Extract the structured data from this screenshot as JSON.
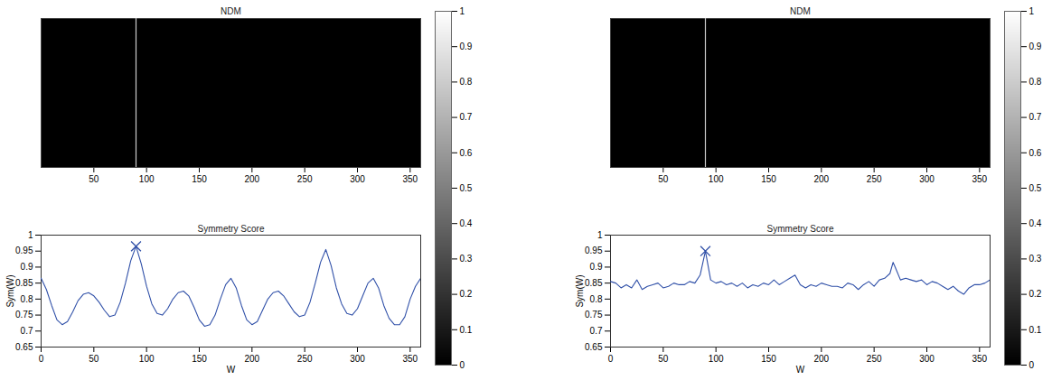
{
  "chart_data": [
    {
      "type": "image",
      "title": "NDM",
      "xlim": [
        0,
        360
      ],
      "xticks": [
        50,
        100,
        150,
        200,
        250,
        300,
        350
      ],
      "tick_labels": "x",
      "cursor_x": 90,
      "colorbar_range": [
        0,
        1
      ],
      "colorbar_ticks": [
        0,
        0.1,
        0.2,
        0.3,
        0.4,
        0.5,
        0.6,
        0.7,
        0.8,
        0.9,
        1
      ]
    },
    {
      "type": "line",
      "title": "Symmetry Score",
      "xlabel": "W",
      "ylabel": "Sym(W)",
      "color": "#3050a8",
      "marker": "x",
      "xlim": [
        0,
        360
      ],
      "ylim": [
        0.65,
        1
      ],
      "xticks": [
        0,
        50,
        100,
        150,
        200,
        250,
        300,
        350
      ],
      "yticks": [
        0.65,
        0.7,
        0.75,
        0.8,
        0.85,
        0.9,
        0.95,
        1
      ],
      "x": [
        0,
        5,
        10,
        15,
        20,
        25,
        30,
        35,
        40,
        45,
        50,
        55,
        60,
        65,
        70,
        75,
        80,
        85,
        90,
        95,
        100,
        105,
        110,
        115,
        120,
        125,
        130,
        135,
        140,
        145,
        150,
        155,
        160,
        165,
        170,
        175,
        180,
        185,
        190,
        195,
        200,
        205,
        210,
        215,
        220,
        225,
        230,
        235,
        240,
        245,
        250,
        255,
        260,
        265,
        270,
        275,
        280,
        285,
        290,
        295,
        300,
        305,
        310,
        315,
        320,
        325,
        330,
        335,
        340,
        345,
        350,
        355,
        360
      ],
      "values": [
        0.865,
        0.83,
        0.78,
        0.735,
        0.72,
        0.73,
        0.76,
        0.795,
        0.815,
        0.82,
        0.81,
        0.79,
        0.765,
        0.745,
        0.75,
        0.79,
        0.85,
        0.92,
        0.965,
        0.91,
        0.84,
        0.785,
        0.755,
        0.75,
        0.77,
        0.8,
        0.82,
        0.825,
        0.81,
        0.775,
        0.735,
        0.715,
        0.72,
        0.75,
        0.8,
        0.845,
        0.865,
        0.835,
        0.78,
        0.735,
        0.72,
        0.73,
        0.765,
        0.8,
        0.82,
        0.825,
        0.81,
        0.785,
        0.76,
        0.745,
        0.75,
        0.79,
        0.85,
        0.915,
        0.955,
        0.905,
        0.835,
        0.785,
        0.755,
        0.75,
        0.77,
        0.81,
        0.85,
        0.865,
        0.835,
        0.78,
        0.74,
        0.72,
        0.72,
        0.745,
        0.8,
        0.84,
        0.865
      ],
      "peak": {
        "x": 90,
        "y": 0.965
      }
    },
    {
      "type": "image",
      "title": "NDM",
      "xlim": [
        0,
        360
      ],
      "xticks": [
        50,
        100,
        150,
        200,
        250,
        300,
        350
      ],
      "tick_labels": "x",
      "cursor_x": 90,
      "colorbar_range": [
        0,
        1
      ],
      "colorbar_ticks": [
        0,
        0.1,
        0.2,
        0.3,
        0.4,
        0.5,
        0.6,
        0.7,
        0.8,
        0.9,
        1
      ]
    },
    {
      "type": "line",
      "title": "Symmetry Score",
      "xlabel": "W",
      "ylabel": "Sym(W)",
      "color": "#3050a8",
      "marker": "x",
      "xlim": [
        0,
        360
      ],
      "ylim": [
        0.65,
        1
      ],
      "xticks": [
        0,
        50,
        100,
        150,
        200,
        250,
        300,
        350
      ],
      "yticks": [
        0.65,
        0.7,
        0.75,
        0.8,
        0.85,
        0.9,
        0.95,
        1
      ],
      "x": [
        0,
        5,
        10,
        15,
        20,
        25,
        30,
        35,
        40,
        45,
        50,
        55,
        60,
        65,
        70,
        75,
        80,
        85,
        90,
        95,
        100,
        105,
        110,
        115,
        120,
        125,
        130,
        135,
        140,
        145,
        150,
        155,
        160,
        165,
        170,
        175,
        180,
        185,
        190,
        195,
        200,
        205,
        210,
        215,
        220,
        225,
        230,
        235,
        240,
        245,
        250,
        255,
        260,
        265,
        268,
        270,
        275,
        280,
        285,
        290,
        295,
        300,
        305,
        310,
        315,
        320,
        325,
        330,
        335,
        340,
        345,
        350,
        355,
        360
      ],
      "values": [
        0.855,
        0.85,
        0.835,
        0.845,
        0.835,
        0.86,
        0.83,
        0.84,
        0.845,
        0.85,
        0.835,
        0.84,
        0.85,
        0.845,
        0.845,
        0.855,
        0.85,
        0.875,
        0.95,
        0.86,
        0.85,
        0.855,
        0.845,
        0.85,
        0.84,
        0.85,
        0.835,
        0.845,
        0.84,
        0.85,
        0.845,
        0.86,
        0.845,
        0.855,
        0.865,
        0.875,
        0.845,
        0.835,
        0.845,
        0.84,
        0.85,
        0.845,
        0.84,
        0.84,
        0.835,
        0.85,
        0.845,
        0.83,
        0.845,
        0.855,
        0.84,
        0.86,
        0.865,
        0.88,
        0.915,
        0.9,
        0.86,
        0.865,
        0.86,
        0.855,
        0.86,
        0.845,
        0.855,
        0.85,
        0.84,
        0.83,
        0.84,
        0.825,
        0.815,
        0.835,
        0.845,
        0.845,
        0.85,
        0.86
      ],
      "peak": {
        "x": 90,
        "y": 0.95
      }
    }
  ]
}
